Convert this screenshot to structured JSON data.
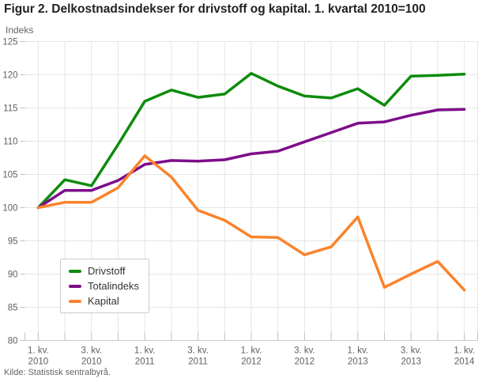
{
  "header": {
    "title": "Figur 2. Delkostnadsindekser for drivstoff og kapital. 1. kvartal 2010=100"
  },
  "source_note": "Kilde: Statistisk sentralbyrå.",
  "palette": {
    "grid_color": "#e6e6e6",
    "axis_color": "#cccccc",
    "tick_color": "#c0c0c0",
    "axis_label_color": "#606060",
    "title_color": "#222222",
    "legend_border_color": "#cccccc"
  },
  "chart_data": {
    "type": "line",
    "title": "Figur 2. Delkostnadsindekser for drivstoff og kapital. 1. kvartal 2010=100",
    "y_axis_title": "Indeks",
    "xlabel": "",
    "ylabel": "Indeks",
    "ylim": [
      80,
      125
    ],
    "y_ticks": [
      125,
      120,
      115,
      110,
      105,
      100,
      95,
      90,
      85,
      80
    ],
    "grid": true,
    "legend_position": "inside-bottom-left",
    "categories": [
      "1. kv. 2010",
      "2. kv. 2010",
      "3. kv. 2010",
      "4. kv. 2010",
      "1. kv. 2011",
      "2. kv. 2011",
      "3. kv. 2011",
      "4. kv. 2011",
      "1. kv. 2012",
      "2. kv. 2012",
      "3. kv. 2012",
      "4. kv. 2012",
      "1. kv. 2013",
      "2. kv. 2013",
      "3. kv. 2013",
      "4. kv. 2013",
      "1. kv. 2014"
    ],
    "x_tick_labels": [
      {
        "index": 0,
        "line1": "1. kv.",
        "line2": "2010"
      },
      {
        "index": 2,
        "line1": "3. kv.",
        "line2": "2010"
      },
      {
        "index": 4,
        "line1": "1. kv.",
        "line2": "2011"
      },
      {
        "index": 6,
        "line1": "3. kv.",
        "line2": "2011"
      },
      {
        "index": 8,
        "line1": "1. kv.",
        "line2": "2012"
      },
      {
        "index": 10,
        "line1": "3. kv.",
        "line2": "2012"
      },
      {
        "index": 12,
        "line1": "1. kv.",
        "line2": "2013"
      },
      {
        "index": 14,
        "line1": "3. kv.",
        "line2": "2013"
      },
      {
        "index": 16,
        "line1": "1. kv.",
        "line2": "2014"
      }
    ],
    "series": [
      {
        "name": "Drivstoff",
        "color": "#0d8c0d",
        "values": [
          100,
          104.2,
          103.3,
          109.5,
          116.0,
          117.7,
          116.6,
          117.1,
          120.2,
          118.3,
          116.8,
          116.5,
          117.9,
          115.4,
          119.8,
          119.9,
          120.1
        ]
      },
      {
        "name": "Totalindeks",
        "color": "#7e0d8a",
        "values": [
          100,
          102.6,
          102.6,
          104.1,
          106.5,
          107.1,
          107.0,
          107.2,
          108.1,
          108.5,
          109.9,
          111.3,
          112.7,
          112.9,
          113.9,
          114.7,
          114.8
        ]
      },
      {
        "name": "Kapital",
        "color": "#fa832c",
        "values": [
          100,
          100.8,
          100.8,
          103.0,
          107.8,
          104.6,
          99.6,
          98.1,
          95.6,
          95.5,
          92.9,
          94.1,
          98.6,
          88.0,
          90.0,
          91.9,
          87.6
        ]
      }
    ]
  }
}
